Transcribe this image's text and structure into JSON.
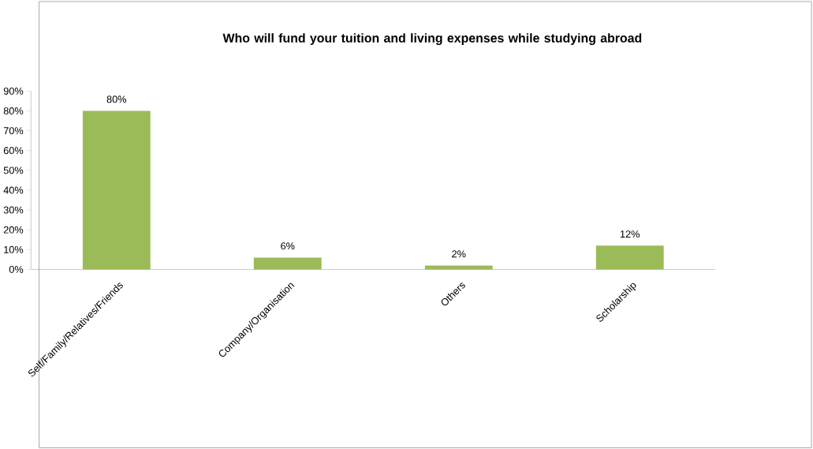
{
  "chart_data": {
    "type": "bar",
    "title": "Who will fund your tuition and living expenses while studying abroad",
    "categories": [
      "Self/Family/Relatives/Friends",
      "Company/Organisation",
      "Others",
      "Scholarship"
    ],
    "values": [
      80,
      6,
      2,
      12
    ],
    "value_labels": [
      "80%",
      "6%",
      "2%",
      "12%"
    ],
    "color": "#9bbb59",
    "ylim": [
      0,
      90
    ],
    "yticks": [
      {
        "value": 0,
        "label": "0%"
      },
      {
        "value": 10,
        "label": "10%"
      },
      {
        "value": 20,
        "label": "20%"
      },
      {
        "value": 30,
        "label": "30%"
      },
      {
        "value": 40,
        "label": "40%"
      },
      {
        "value": 50,
        "label": "50%"
      },
      {
        "value": 60,
        "label": "60%"
      },
      {
        "value": 70,
        "label": "70%"
      },
      {
        "value": 80,
        "label": "80%"
      },
      {
        "value": 90,
        "label": "90%"
      }
    ]
  }
}
